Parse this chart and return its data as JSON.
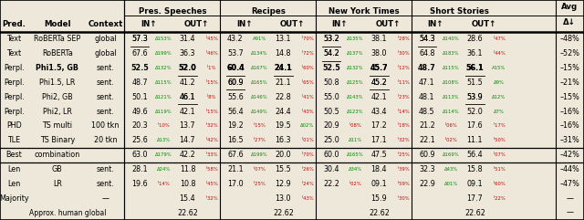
{
  "bg_color": "#ede8da",
  "fs_main": 5.8,
  "fs_delta": 3.8,
  "fs_header": 6.2,
  "rows": [
    {
      "pred": "Text",
      "model": "RoBERTa SEP",
      "context": "global",
      "cells": [
        {
          "val": "57.3",
          "delta": "Δ153%",
          "dc": "green",
          "ul": true
        },
        {
          "val": "31.4",
          "delta": "╵45%",
          "dc": "red",
          "ul": false
        },
        {
          "val": "43.2",
          "delta": "Α91%",
          "dc": "green",
          "ul": false
        },
        {
          "val": "13.1",
          "delta": "╵70%",
          "dc": "red",
          "ul": false
        },
        {
          "val": "53.2",
          "delta": "Δ135%",
          "dc": "green",
          "ul": true
        },
        {
          "val": "38.1",
          "delta": "╵28%",
          "dc": "red",
          "ul": false
        },
        {
          "val": "54.3",
          "delta": "Δ140%",
          "dc": "green",
          "ul": true
        },
        {
          "val": "28.6",
          "delta": "╵47%",
          "dc": "red",
          "ul": false
        }
      ],
      "avg": "–48%",
      "bold_model": false,
      "section": 0
    },
    {
      "pred": "Text",
      "model": "RoBERTa",
      "context": "global",
      "cells": [
        {
          "val": "67.6",
          "delta": "Δ199%",
          "dc": "green",
          "ul": false
        },
        {
          "val": "36.3",
          "delta": "╵46%",
          "dc": "red",
          "ul": false
        },
        {
          "val": "53.7",
          "delta": "Δ134%",
          "dc": "green",
          "ul": false
        },
        {
          "val": "14.8",
          "delta": "╵72%",
          "dc": "red",
          "ul": false
        },
        {
          "val": "54.2",
          "delta": "Δ137%",
          "dc": "green",
          "ul": true
        },
        {
          "val": "38.0",
          "delta": "╵30%",
          "dc": "red",
          "ul": false
        },
        {
          "val": "64.8",
          "delta": "Δ183%",
          "dc": "green",
          "ul": false
        },
        {
          "val": "36.1",
          "delta": "╵44%",
          "dc": "red",
          "ul": false
        }
      ],
      "avg": "–52%",
      "bold_model": false,
      "section": 0
    },
    {
      "pred": "Perpl.",
      "model": "Phi1.5, GB",
      "context": "sent.",
      "cells": [
        {
          "val": "52.5",
          "delta": "Δ132%",
          "dc": "green",
          "ul": false
        },
        {
          "val": "52.0",
          "delta": "╵1%",
          "dc": "red",
          "ul": true
        },
        {
          "val": "60.4",
          "delta": "Δ167%",
          "dc": "green",
          "ul": true
        },
        {
          "val": "24.1",
          "delta": "╵60%",
          "dc": "red",
          "ul": true
        },
        {
          "val": "52.5",
          "delta": "Δ132%",
          "dc": "green",
          "ul": false
        },
        {
          "val": "45.7",
          "delta": "╵12%",
          "dc": "red",
          "ul": true
        },
        {
          "val": "48.7",
          "delta": "Δ115%",
          "dc": "green",
          "ul": false
        },
        {
          "val": "56.1",
          "delta": "Α15%",
          "dc": "green",
          "ul": true
        }
      ],
      "avg": "–15%",
      "bold_model": true,
      "section": 0
    },
    {
      "pred": "Perpl.",
      "model": "Phi1.5, LR",
      "context": "sent.",
      "cells": [
        {
          "val": "48.7",
          "delta": "Δ115%",
          "dc": "green",
          "ul": false
        },
        {
          "val": "41.2",
          "delta": "╵15%",
          "dc": "red",
          "ul": false
        },
        {
          "val": "60.9",
          "delta": "Δ165%",
          "dc": "green",
          "ul": true
        },
        {
          "val": "21.1",
          "delta": "╵65%",
          "dc": "red",
          "ul": false
        },
        {
          "val": "50.8",
          "delta": "Δ125%",
          "dc": "green",
          "ul": false
        },
        {
          "val": "45.2",
          "delta": "╵11%",
          "dc": "red",
          "ul": true
        },
        {
          "val": "47.1",
          "delta": "Δ108%",
          "dc": "green",
          "ul": false
        },
        {
          "val": "51.5",
          "delta": "Δ9%",
          "dc": "green",
          "ul": false
        }
      ],
      "avg": "–21%",
      "bold_model": false,
      "section": 0
    },
    {
      "pred": "Perpl.",
      "model": "Phi2, GB",
      "context": "sent.",
      "cells": [
        {
          "val": "50.1",
          "delta": "Δ121%",
          "dc": "green",
          "ul": false
        },
        {
          "val": "46.1",
          "delta": "╵8%",
          "dc": "red",
          "ul": true
        },
        {
          "val": "55.6",
          "delta": "Δ146%",
          "dc": "green",
          "ul": false
        },
        {
          "val": "22.8",
          "delta": "╵41%",
          "dc": "red",
          "ul": false
        },
        {
          "val": "55.0",
          "delta": "Δ143%",
          "dc": "green",
          "ul": false
        },
        {
          "val": "42.1",
          "delta": "╵23%",
          "dc": "red",
          "ul": false
        },
        {
          "val": "48.1",
          "delta": "Δ113%",
          "dc": "green",
          "ul": false
        },
        {
          "val": "53.9",
          "delta": "Δ12%",
          "dc": "green",
          "ul": true
        }
      ],
      "avg": "–15%",
      "bold_model": false,
      "section": 0
    },
    {
      "pred": "Perpl.",
      "model": "Phi2, LR",
      "context": "sent.",
      "cells": [
        {
          "val": "49.6",
          "delta": "Δ119%",
          "dc": "green",
          "ul": false
        },
        {
          "val": "42.1",
          "delta": "╵15%",
          "dc": "red",
          "ul": false
        },
        {
          "val": "56.4",
          "delta": "Δ149%",
          "dc": "green",
          "ul": false
        },
        {
          "val": "24.4",
          "delta": "╵43%",
          "dc": "red",
          "ul": false
        },
        {
          "val": "50.5",
          "delta": "Δ123%",
          "dc": "green",
          "ul": false
        },
        {
          "val": "43.4",
          "delta": "╵14%",
          "dc": "red",
          "ul": false
        },
        {
          "val": "48.5",
          "delta": "Δ114%",
          "dc": "green",
          "ul": false
        },
        {
          "val": "52.0",
          "delta": "Δ7%",
          "dc": "green",
          "ul": false
        }
      ],
      "avg": "–16%",
      "bold_model": false,
      "section": 0
    },
    {
      "pred": "PHD",
      "model": "TS multi",
      "context": "100 tkn",
      "cells": [
        {
          "val": "20.3",
          "delta": "╵10%",
          "dc": "red",
          "ul": false
        },
        {
          "val": "13.7",
          "delta": "╵32%",
          "dc": "red",
          "ul": false
        },
        {
          "val": "19.2",
          "delta": "╵15%",
          "dc": "red",
          "ul": false
        },
        {
          "val": "19.5",
          "delta": "Δ02%",
          "dc": "green",
          "ul": false
        },
        {
          "val": "20.9",
          "delta": "╵08%",
          "dc": "red",
          "ul": false
        },
        {
          "val": "17.2",
          "delta": "╵18%",
          "dc": "red",
          "ul": false
        },
        {
          "val": "21.2",
          "delta": "╵06%",
          "dc": "red",
          "ul": false
        },
        {
          "val": "17.6",
          "delta": "╵17%",
          "dc": "red",
          "ul": false
        }
      ],
      "avg": "–16%",
      "bold_model": false,
      "section": 0
    },
    {
      "pred": "TLE",
      "model": "TS Binary",
      "context": "20 tkn",
      "cells": [
        {
          "val": "25.6",
          "delta": "Δ13%",
          "dc": "green",
          "ul": false
        },
        {
          "val": "14.7",
          "delta": "╵42%",
          "dc": "red",
          "ul": false
        },
        {
          "val": "16.5",
          "delta": "╵27%",
          "dc": "red",
          "ul": false
        },
        {
          "val": "16.3",
          "delta": "╵01%",
          "dc": "red",
          "ul": false
        },
        {
          "val": "25.0",
          "delta": "Δ11%",
          "dc": "green",
          "ul": false
        },
        {
          "val": "17.1",
          "delta": "╵32%",
          "dc": "red",
          "ul": false
        },
        {
          "val": "22.1",
          "delta": "╵02%",
          "dc": "red",
          "ul": false
        },
        {
          "val": "11.1",
          "delta": "╵50%",
          "dc": "red",
          "ul": false
        }
      ],
      "avg": "–31%",
      "bold_model": false,
      "section": 0
    },
    {
      "pred": "Best",
      "model": "combination",
      "context": "",
      "cells": [
        {
          "val": "63.0",
          "delta": "Δ179%",
          "dc": "green",
          "ul": false
        },
        {
          "val": "42.2",
          "delta": "╵33%",
          "dc": "red",
          "ul": false
        },
        {
          "val": "67.6",
          "delta": "Δ199%",
          "dc": "green",
          "ul": false
        },
        {
          "val": "20.0",
          "delta": "╵70%",
          "dc": "red",
          "ul": false
        },
        {
          "val": "60.0",
          "delta": "Δ165%",
          "dc": "green",
          "ul": false
        },
        {
          "val": "47.5",
          "delta": "╵25%",
          "dc": "red",
          "ul": false
        },
        {
          "val": "60.9",
          "delta": "Δ169%",
          "dc": "green",
          "ul": false
        },
        {
          "val": "56.4",
          "delta": "╵07%",
          "dc": "red",
          "ul": false
        }
      ],
      "avg": "–42%",
      "bold_model": false,
      "section": 1
    },
    {
      "pred": "Len",
      "model": "GB",
      "context": "sent.",
      "cells": [
        {
          "val": "28.1",
          "delta": "Δ24%",
          "dc": "green",
          "ul": false
        },
        {
          "val": "11.8",
          "delta": "╵58%",
          "dc": "red",
          "ul": false
        },
        {
          "val": "21.1",
          "delta": "╵07%",
          "dc": "red",
          "ul": false
        },
        {
          "val": "15.5",
          "delta": "╵26%",
          "dc": "red",
          "ul": false
        },
        {
          "val": "30.4",
          "delta": "Δ34%",
          "dc": "green",
          "ul": false
        },
        {
          "val": "18.4",
          "delta": "╵39%",
          "dc": "red",
          "ul": false
        },
        {
          "val": "32.3",
          "delta": "Δ43%",
          "dc": "green",
          "ul": false
        },
        {
          "val": "15.8",
          "delta": "╵51%",
          "dc": "red",
          "ul": false
        }
      ],
      "avg": "–44%",
      "bold_model": false,
      "section": 2
    },
    {
      "pred": "Len",
      "model": "LR",
      "context": "sent.",
      "cells": [
        {
          "val": "19.6",
          "delta": "╵14%",
          "dc": "red",
          "ul": false
        },
        {
          "val": "10.8",
          "delta": "╵45%",
          "dc": "red",
          "ul": false
        },
        {
          "val": "17.0",
          "delta": "╵25%",
          "dc": "red",
          "ul": false
        },
        {
          "val": "12.9",
          "delta": "╵24%",
          "dc": "red",
          "ul": false
        },
        {
          "val": "22.2",
          "delta": "╵02%",
          "dc": "red",
          "ul": false
        },
        {
          "val": "09.1",
          "delta": "╵59%",
          "dc": "red",
          "ul": false
        },
        {
          "val": "22.9",
          "delta": "Δ01%",
          "dc": "green",
          "ul": false
        },
        {
          "val": "09.1",
          "delta": "╵60%",
          "dc": "red",
          "ul": false
        }
      ],
      "avg": "–47%",
      "bold_model": false,
      "section": 2
    },
    {
      "pred": "Majority",
      "model": "",
      "context": "—",
      "cells": [
        null,
        {
          "val": "15.4",
          "delta": "╵32%",
          "dc": "red",
          "ul": false
        },
        null,
        {
          "val": "13.0",
          "delta": "╵43%",
          "dc": "red",
          "ul": false
        },
        null,
        {
          "val": "15.9",
          "delta": "╵30%",
          "dc": "red",
          "ul": false
        },
        null,
        {
          "val": "17.7",
          "delta": "╵22%",
          "dc": "red",
          "ul": false
        }
      ],
      "avg": "—",
      "bold_model": false,
      "section": 2,
      "majority": true
    },
    {
      "pred": "Approx. human global",
      "model": "",
      "context": "",
      "cells": [
        null,
        {
          "val": "22.62",
          "delta": "",
          "dc": "black",
          "ul": false
        },
        null,
        {
          "val": "22.62",
          "delta": "",
          "dc": "black",
          "ul": false
        },
        null,
        {
          "val": "22.62",
          "delta": "",
          "dc": "black",
          "ul": false
        },
        null,
        {
          "val": "22.62",
          "delta": "",
          "dc": "black",
          "ul": false
        }
      ],
      "avg": "—",
      "bold_model": false,
      "section": 2,
      "human": true
    }
  ]
}
